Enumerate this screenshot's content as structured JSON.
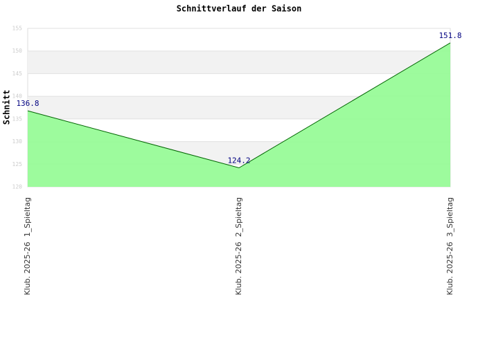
{
  "chart_data": {
    "type": "area",
    "title": "Schnittverlauf der Saison",
    "y_label": "Schnitt",
    "categories": [
      "Klub. 2025-26  1_Spieltag",
      "Klub. 2025-26  2_Spieltag",
      "Klub. 2025-26  3_Spieltag"
    ],
    "series": [
      {
        "name": "Schnitt",
        "color": "#006400",
        "fill": "#98fb98",
        "values": [
          136.8,
          124.2,
          151.8
        ]
      }
    ],
    "ylim": [
      120,
      155
    ],
    "yticks": [
      120,
      125,
      130,
      135,
      140,
      145,
      150,
      155
    ],
    "grid": true
  }
}
